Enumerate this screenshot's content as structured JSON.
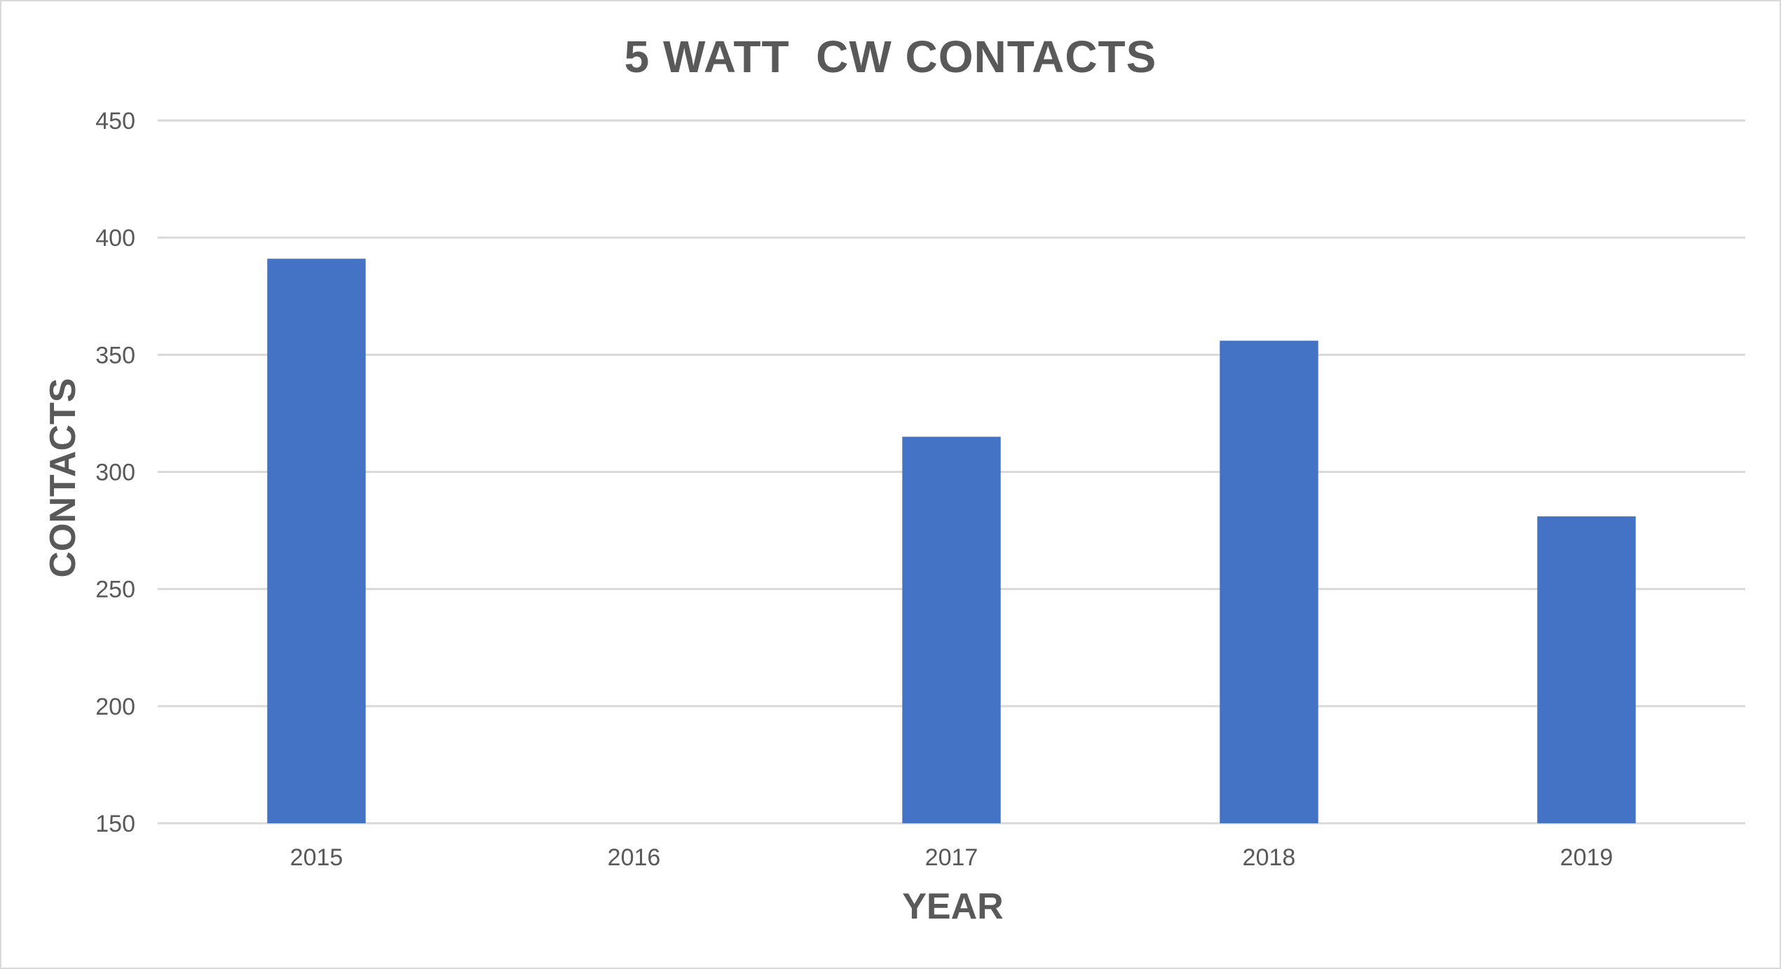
{
  "chart_data": {
    "type": "bar",
    "title": "5 WATT  CW CONTACTS",
    "xlabel": "YEAR",
    "ylabel": "CONTACTS",
    "categories": [
      "2015",
      "2016",
      "2017",
      "2018",
      "2019"
    ],
    "values": [
      391,
      150,
      315,
      356,
      281
    ],
    "ylim": [
      150,
      450
    ],
    "yticks": [
      150,
      200,
      250,
      300,
      350,
      400,
      450
    ],
    "grid": true,
    "legend": "none",
    "colors": {
      "bar": "#4472c4",
      "grid": "#d9d9d9",
      "text": "#595959",
      "frame": "#d9d9d9"
    }
  }
}
